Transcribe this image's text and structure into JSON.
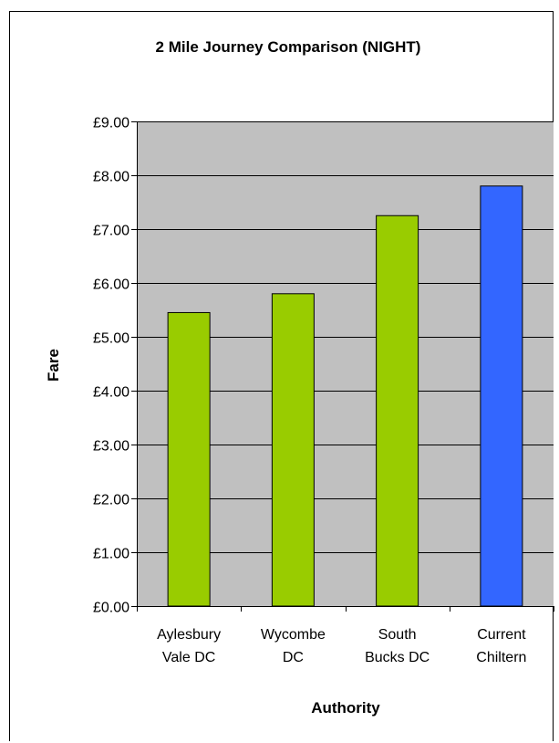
{
  "chart_data": {
    "type": "bar",
    "title": "2 Mile Journey Comparison (NIGHT)",
    "xlabel": "Authority",
    "ylabel": "Fare",
    "categories": [
      [
        "Aylesbury",
        "Vale DC"
      ],
      [
        "Wycombe",
        "DC"
      ],
      [
        "South",
        "Bucks DC"
      ],
      [
        "Current",
        "Chiltern"
      ]
    ],
    "values": [
      5.45,
      5.8,
      7.25,
      7.8
    ],
    "bar_colors": [
      "#99cc00",
      "#99cc00",
      "#99cc00",
      "#3366ff"
    ],
    "ylim": [
      0,
      9
    ],
    "yticks": [
      0,
      1,
      2,
      3,
      4,
      5,
      6,
      7,
      8,
      9
    ],
    "ytick_labels": [
      "£0.00",
      "£1.00",
      "£2.00",
      "£3.00",
      "£4.00",
      "£5.00",
      "£6.00",
      "£7.00",
      "£8.00",
      "£9.00"
    ],
    "grid": true,
    "plot_background": "#c0c0c0",
    "legend": "none"
  }
}
